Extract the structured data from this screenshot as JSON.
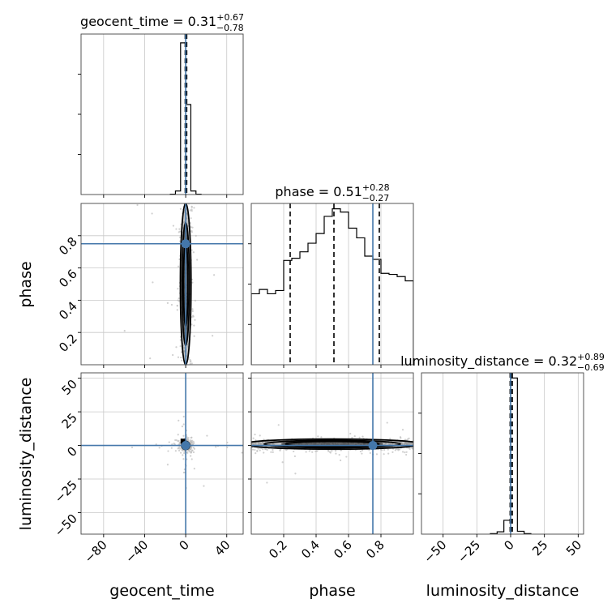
{
  "figure": {
    "params": [
      "geocent_time",
      "phase",
      "luminosity_distance"
    ],
    "titles": [
      {
        "name": "geocent_time",
        "value": "0.31",
        "plus": "+0.67",
        "minus": "−0.78"
      },
      {
        "name": "phase",
        "value": "0.51",
        "plus": "+0.28",
        "minus": "−0.27"
      },
      {
        "name": "luminosity_distance",
        "value": "0.32",
        "plus": "+0.89",
        "minus": "−0.69"
      }
    ],
    "colors": {
      "truth": "#4477aa",
      "hist": "#000000",
      "grid": "#c8c8c8",
      "scatter": "#bcbcbc",
      "density": "#000000"
    }
  },
  "chart_data": {
    "type": "corner",
    "parameters": [
      {
        "name": "geocent_time",
        "range": [
          -102,
          56
        ],
        "ticks": [
          -80,
          -40,
          0,
          40
        ],
        "tick_labels": [
          "−80",
          "−40",
          "0",
          "40"
        ],
        "truth": 0,
        "median": 0.31,
        "q16": -0.47,
        "q84": 0.98
      },
      {
        "name": "phase",
        "range": [
          0.0,
          1.0
        ],
        "ticks": [
          0.2,
          0.4,
          0.6,
          0.8
        ],
        "tick_labels": [
          "0.2",
          "0.4",
          "0.6",
          "0.8"
        ],
        "truth": 0.75,
        "median": 0.51,
        "q16": 0.24,
        "q84": 0.79
      },
      {
        "name": "luminosity_distance",
        "range": [
          -66,
          54
        ],
        "ticks": [
          -50,
          -25,
          0,
          25,
          50
        ],
        "tick_labels": [
          "−50",
          "−25",
          "0",
          "25",
          "50"
        ],
        "truth": 0,
        "median": 0.32,
        "q16": -0.37,
        "q84": 1.21
      }
    ],
    "histograms": [
      {
        "param": "geocent_time",
        "edges": [
          -15,
          -10,
          -5,
          0,
          5,
          10,
          15
        ],
        "counts": [
          1,
          10,
          430,
          255,
          10,
          1
        ],
        "max": 455
      },
      {
        "param": "phase",
        "edges": [
          0.0,
          0.05,
          0.1,
          0.15,
          0.2,
          0.25,
          0.3,
          0.35,
          0.4,
          0.45,
          0.5,
          0.55,
          0.6,
          0.65,
          0.7,
          0.75,
          0.8,
          0.85,
          0.9,
          0.95,
          1.0
        ],
        "counts": [
          66,
          70,
          66,
          69,
          97,
          99,
          105,
          113,
          122,
          138,
          145,
          142,
          127,
          118,
          101,
          98,
          85,
          84,
          82,
          78
        ],
        "max": 150
      },
      {
        "param": "luminosity_distance",
        "edges": [
          -15,
          -10,
          -5,
          0,
          5,
          10,
          15
        ],
        "counts": [
          2,
          8,
          48,
          542,
          10,
          2
        ],
        "max": 560
      }
    ]
  }
}
